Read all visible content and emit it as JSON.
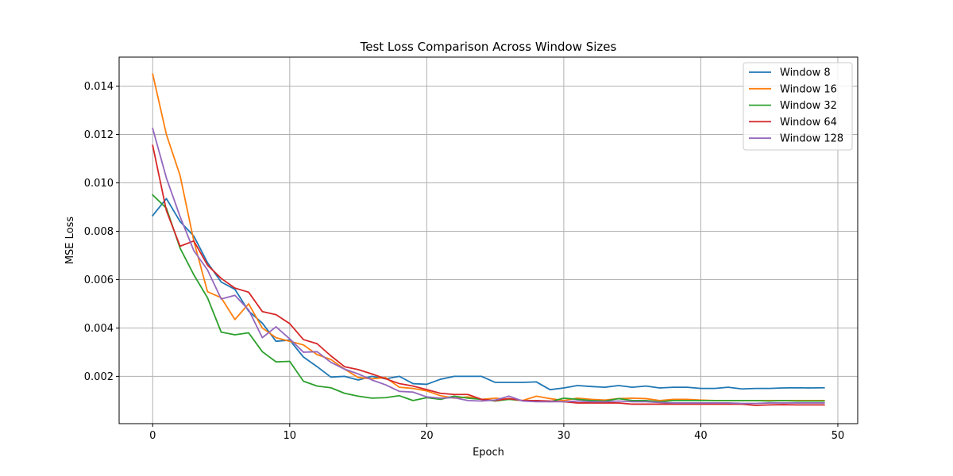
{
  "chart_data": {
    "type": "line",
    "title": "Test Loss Comparison Across Window Sizes",
    "xlabel": "Epoch",
    "ylabel": "MSE Loss",
    "xlim": [
      -2.45,
      51.45
    ],
    "ylim": [
      4.5e-05,
      0.0152
    ],
    "xticks": [
      0,
      10,
      20,
      30,
      40,
      50
    ],
    "yticks": [
      0.002,
      0.004,
      0.006,
      0.008,
      0.01,
      0.012,
      0.014
    ],
    "ytick_labels": [
      "0.002",
      "0.004",
      "0.006",
      "0.008",
      "0.010",
      "0.012",
      "0.014"
    ],
    "grid": true,
    "legend_position": "top-right",
    "series": [
      {
        "name": "Window 8",
        "color": "#1f77b4",
        "y": [
          0.00865,
          0.00935,
          0.0084,
          0.0078,
          0.0067,
          0.0059,
          0.0056,
          0.0047,
          0.0042,
          0.00345,
          0.0035,
          0.0028,
          0.0024,
          0.00197,
          0.002,
          0.00185,
          0.002,
          0.0019,
          0.002,
          0.0017,
          0.00167,
          0.00188,
          0.002,
          0.002,
          0.002,
          0.00175,
          0.00175,
          0.00175,
          0.00177,
          0.00145,
          0.00152,
          0.00162,
          0.00158,
          0.00155,
          0.00162,
          0.00155,
          0.0016,
          0.00152,
          0.00155,
          0.00155,
          0.0015,
          0.0015,
          0.00155,
          0.00148,
          0.0015,
          0.0015,
          0.00152,
          0.00153,
          0.00152,
          0.00153
        ]
      },
      {
        "name": "Window 16",
        "color": "#ff7f0e",
        "y": [
          0.0145,
          0.012,
          0.0103,
          0.0076,
          0.0055,
          0.00525,
          0.00435,
          0.005,
          0.004,
          0.0036,
          0.00345,
          0.0033,
          0.0029,
          0.0027,
          0.0023,
          0.00195,
          0.0019,
          0.00195,
          0.00155,
          0.0015,
          0.0014,
          0.0012,
          0.0011,
          0.00115,
          0.00105,
          0.0011,
          0.00105,
          0.001,
          0.00118,
          0.00108,
          0.001,
          0.0011,
          0.00105,
          0.00102,
          0.00108,
          0.0011,
          0.00108,
          0.001,
          0.00105,
          0.00105,
          0.00102,
          0.001,
          0.001,
          0.001,
          0.001,
          0.001,
          0.001,
          0.001,
          0.001,
          0.001
        ]
      },
      {
        "name": "Window 32",
        "color": "#2ca02c",
        "y": [
          0.0095,
          0.00895,
          0.0073,
          0.0062,
          0.00525,
          0.00383,
          0.00372,
          0.0038,
          0.00302,
          0.0026,
          0.00262,
          0.0018,
          0.0016,
          0.00153,
          0.0013,
          0.00118,
          0.0011,
          0.00112,
          0.0012,
          0.001,
          0.00112,
          0.00105,
          0.00118,
          0.0011,
          0.00105,
          0.00098,
          0.00105,
          0.001,
          0.001,
          0.00095,
          0.0011,
          0.00105,
          0.001,
          0.00098,
          0.00108,
          0.001,
          0.001,
          0.00095,
          0.001,
          0.001,
          0.001,
          0.001,
          0.001,
          0.001,
          0.001,
          0.00098,
          0.001,
          0.00098,
          0.00098,
          0.00098
        ]
      },
      {
        "name": "Window 64",
        "color": "#d62728",
        "y": [
          0.01155,
          0.00885,
          0.00738,
          0.0076,
          0.0066,
          0.00605,
          0.00565,
          0.00548,
          0.00468,
          0.00455,
          0.00418,
          0.00352,
          0.00335,
          0.00285,
          0.0024,
          0.00228,
          0.0021,
          0.0019,
          0.0017,
          0.0016,
          0.00145,
          0.0013,
          0.00125,
          0.00125,
          0.00105,
          0.001,
          0.00108,
          0.001,
          0.001,
          0.00098,
          0.00095,
          0.0009,
          0.0009,
          0.0009,
          0.0009,
          0.00085,
          0.00085,
          0.00085,
          0.00085,
          0.00085,
          0.00085,
          0.00085,
          0.00085,
          0.00085,
          0.0008,
          0.00082,
          0.00083,
          0.00082,
          0.00082,
          0.00082
        ]
      },
      {
        "name": "Window 128",
        "color": "#9467bd",
        "y": [
          0.01225,
          0.0102,
          0.0086,
          0.0072,
          0.0064,
          0.0052,
          0.00535,
          0.00475,
          0.0036,
          0.00405,
          0.00355,
          0.003,
          0.00302,
          0.00258,
          0.0023,
          0.0021,
          0.00185,
          0.00165,
          0.00138,
          0.00135,
          0.00115,
          0.0011,
          0.00112,
          0.001,
          0.00098,
          0.00102,
          0.00118,
          0.00098,
          0.00095,
          0.00095,
          0.00095,
          0.00098,
          0.00095,
          0.00095,
          0.00098,
          0.00095,
          0.00095,
          0.00092,
          0.0009,
          0.0009,
          0.0009,
          0.0009,
          0.0009,
          0.00088,
          0.00088,
          0.0009,
          0.0009,
          0.0009,
          0.0009,
          0.0009
        ]
      }
    ]
  }
}
